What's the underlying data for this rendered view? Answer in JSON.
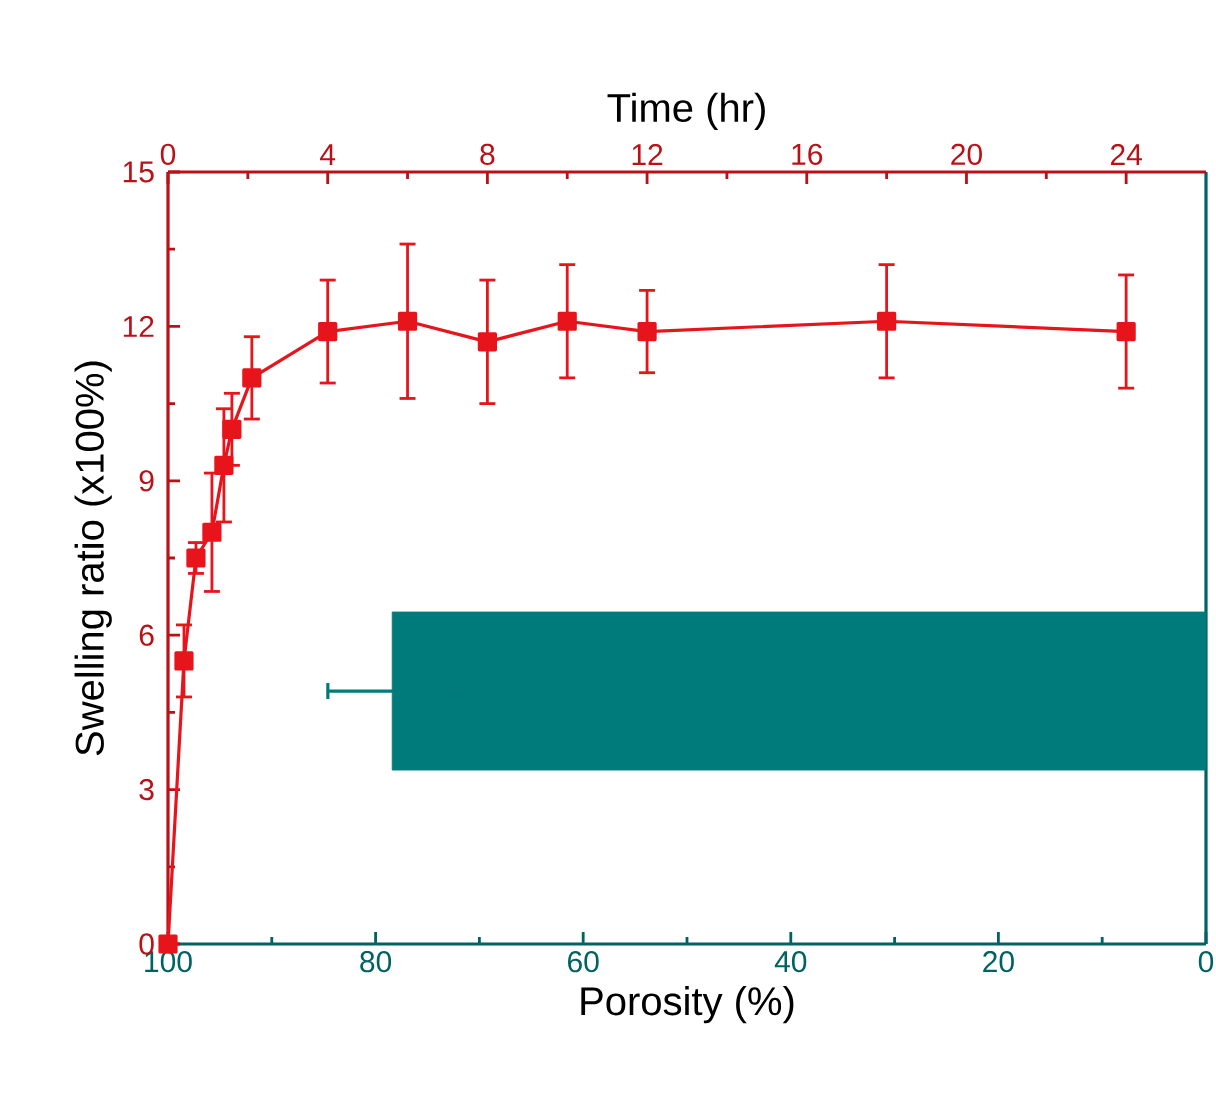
{
  "chart_data": [
    {
      "type": "line",
      "xlabel": "Time (hr)",
      "ylabel": "Swelling ratio (x100%)",
      "xlim": [
        0,
        26
      ],
      "xticks": [
        0,
        4,
        8,
        12,
        16,
        20,
        24
      ],
      "ylim": [
        0,
        15
      ],
      "yticks": [
        0,
        3,
        6,
        9,
        12,
        15
      ],
      "marker": "square",
      "series": [
        {
          "color": "#e8141c",
          "x": [
            0,
            0.4,
            0.7,
            1.1,
            1.4,
            1.6,
            2.1,
            4,
            6,
            8,
            10,
            12,
            18,
            24
          ],
          "values": [
            0,
            5.5,
            7.5,
            8.0,
            9.3,
            10.0,
            11.0,
            11.9,
            12.1,
            11.7,
            12.1,
            11.9,
            12.1,
            11.9
          ],
          "errors": [
            null,
            0.7,
            0.3,
            1.15,
            1.1,
            0.7,
            0.8,
            1.0,
            1.5,
            1.2,
            1.1,
            0.8,
            1.1,
            1.1
          ]
        }
      ]
    },
    {
      "type": "bar",
      "orientation": "horizontal",
      "xlabel": "Porosity (%)",
      "xlim": [
        100,
        0
      ],
      "xticks": [
        100,
        80,
        60,
        40,
        20,
        0
      ],
      "tick_labels": "x",
      "categories": [
        null
      ],
      "series": [
        {
          "color": "#007b7b",
          "values": [
            78.4
          ],
          "errors": [
            6.2
          ]
        }
      ]
    }
  ]
}
